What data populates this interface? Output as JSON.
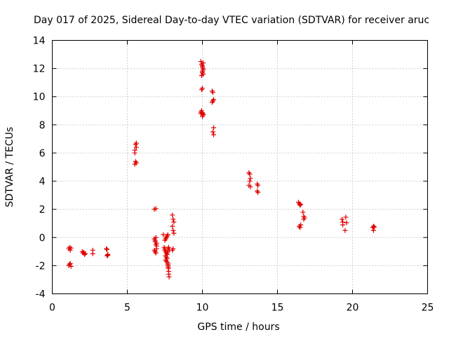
{
  "chart_data": {
    "type": "scatter",
    "title": "Day 017 of 2025, Sidereal Day-to-day VTEC variation (SDTVAR) for receiver aruc",
    "xlabel": "GPS time / hours",
    "ylabel": "SDTVAR / TECUs",
    "xlim": [
      0,
      25
    ],
    "ylim": [
      -4,
      14
    ],
    "xticks": [
      0,
      5,
      10,
      15,
      20,
      25
    ],
    "yticks": [
      -4,
      -2,
      0,
      2,
      4,
      6,
      8,
      10,
      12,
      14
    ],
    "grid": true,
    "marker": "plus",
    "color": "#e00000",
    "series": [
      {
        "name": "SDTVAR",
        "x": [
          1.1,
          1.15,
          1.2,
          1.25,
          1.1,
          1.15,
          1.2,
          1.25,
          2.0,
          2.05,
          2.1,
          2.15,
          2.2,
          2.7,
          2.7,
          3.6,
          3.65,
          3.7,
          3.65,
          3.7,
          5.5,
          5.55,
          5.6,
          5.5,
          5.55,
          5.6,
          5.5,
          5.6,
          6.8,
          6.85,
          6.9,
          6.95,
          6.8,
          6.85,
          6.9,
          6.95,
          6.8,
          6.9,
          6.85,
          6.9,
          6.95,
          7.4,
          7.45,
          7.5,
          7.55,
          7.6,
          7.65,
          7.5,
          7.55,
          7.6,
          7.65,
          7.7,
          7.5,
          7.55,
          7.6,
          7.65,
          7.7,
          7.75,
          7.8,
          7.55,
          7.6,
          7.65,
          7.7,
          7.7,
          7.72,
          7.74,
          7.75,
          7.76,
          7.78,
          7.7,
          7.72,
          8.0,
          8.05,
          8.1,
          8.0,
          8.05,
          8.1,
          8.05,
          8.0,
          9.9,
          9.95,
          10.0,
          10.05,
          10.0,
          10.05,
          9.95,
          10.0,
          10.05,
          10.0,
          9.95,
          10.0,
          10.05,
          9.9,
          10.0,
          9.95,
          10.0,
          10.05,
          9.9,
          10.0,
          10.05,
          10.65,
          10.7,
          10.75,
          10.65,
          10.7,
          10.75,
          10.7,
          10.75,
          13.1,
          13.15,
          13.2,
          13.15,
          13.2,
          13.1,
          13.65,
          13.7,
          13.65,
          13.7,
          16.4,
          16.45,
          16.5,
          16.55,
          16.45,
          16.5,
          16.55,
          16.7,
          16.75,
          16.8,
          16.75,
          19.3,
          19.35,
          19.35,
          19.55,
          19.6,
          19.5,
          21.35,
          21.4,
          21.45,
          21.4
        ],
        "y": [
          -0.8,
          -0.7,
          -0.9,
          -0.75,
          -2.0,
          -1.9,
          -1.85,
          -2.05,
          -1.0,
          -1.1,
          -1.05,
          -1.2,
          -1.15,
          -0.9,
          -1.15,
          -0.8,
          -0.85,
          -1.2,
          -1.3,
          -1.25,
          6.2,
          6.6,
          6.4,
          5.2,
          5.4,
          5.3,
          6.0,
          6.7,
          -0.1,
          -0.3,
          -0.5,
          -0.8,
          -0.9,
          -1.0,
          -1.1,
          -0.6,
          2.0,
          2.05,
          -0.2,
          0.0,
          -0.4,
          0.2,
          -0.7,
          -0.8,
          -1.0,
          -1.1,
          -1.2,
          -0.2,
          -0.1,
          0.0,
          0.1,
          0.2,
          -0.9,
          -1.3,
          -1.4,
          -1.5,
          -0.8,
          -0.7,
          -0.9,
          -1.6,
          -1.7,
          -1.2,
          -1.0,
          -1.8,
          -2.0,
          -2.2,
          -2.4,
          -2.6,
          -2.8,
          -1.9,
          -2.1,
          1.6,
          1.3,
          1.1,
          0.8,
          0.5,
          0.3,
          -0.8,
          -0.9,
          12.5,
          12.3,
          12.1,
          12.0,
          11.8,
          11.6,
          11.5,
          11.7,
          12.4,
          10.6,
          10.5,
          8.8,
          8.7,
          8.9,
          8.6,
          9.0,
          8.85,
          8.75,
          8.8,
          12.2,
          11.9,
          10.4,
          10.3,
          9.8,
          9.6,
          9.7,
          7.8,
          7.5,
          7.3,
          4.6,
          4.5,
          4.2,
          4.0,
          3.6,
          3.7,
          3.8,
          3.7,
          3.3,
          3.2,
          2.5,
          2.4,
          2.3,
          2.35,
          0.8,
          0.7,
          0.9,
          1.8,
          1.5,
          1.4,
          1.3,
          1.3,
          0.9,
          1.1,
          1.45,
          1.05,
          0.5,
          0.7,
          0.5,
          0.75,
          0.8
        ]
      }
    ]
  }
}
